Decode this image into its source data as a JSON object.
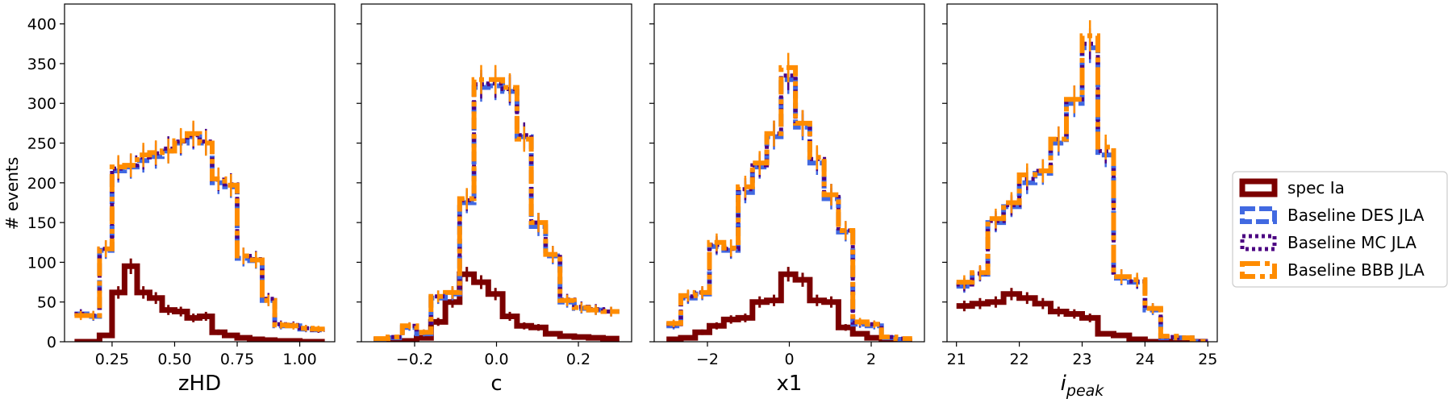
{
  "colors": {
    "spec": "#7b0000",
    "des": "#4169e1",
    "mc": "#4b0082",
    "bbb": "#ff8c00"
  },
  "ylabel": "# events",
  "legend": {
    "placement": "right",
    "entries": [
      "spec Ia",
      "Baseline DES JLA",
      "Baseline MC JLA",
      "Baseline BBB JLA"
    ]
  },
  "chart_data": [
    {
      "type": "histogram",
      "xlabel": "zHD",
      "xlim": [
        0.06,
        1.14
      ],
      "ylim": [
        0,
        425
      ],
      "xticks": [
        0.25,
        0.5,
        0.75,
        1.0
      ],
      "xtick_labels": [
        "0.25",
        "0.50",
        "0.75",
        "1.00"
      ],
      "yticks": [
        0,
        50,
        100,
        150,
        200,
        250,
        300,
        350,
        400
      ],
      "bin_edges": [
        0.1,
        0.15,
        0.2,
        0.25,
        0.3,
        0.35,
        0.4,
        0.45,
        0.5,
        0.55,
        0.6,
        0.65,
        0.7,
        0.75,
        0.8,
        0.85,
        0.9,
        0.95,
        1.0,
        1.05,
        1.1
      ],
      "series": [
        {
          "name": "spec Ia",
          "values": [
            0,
            0,
            8,
            62,
            95,
            62,
            55,
            40,
            38,
            30,
            32,
            12,
            8,
            5,
            3,
            2,
            1,
            1,
            0,
            0
          ]
        },
        {
          "name": "Baseline DES JLA",
          "values": [
            35,
            32,
            115,
            215,
            220,
            228,
            233,
            240,
            250,
            258,
            250,
            200,
            195,
            105,
            102,
            52,
            20,
            20,
            16,
            15
          ]
        },
        {
          "name": "Baseline MC JLA",
          "values": [
            35,
            33,
            117,
            218,
            222,
            232,
            237,
            243,
            252,
            260,
            252,
            204,
            198,
            108,
            104,
            54,
            22,
            21,
            17,
            15
          ]
        },
        {
          "name": "Baseline BBB JLA",
          "values": [
            33,
            33,
            117,
            220,
            222,
            235,
            238,
            240,
            253,
            262,
            250,
            205,
            197,
            108,
            103,
            52,
            21,
            20,
            17,
            16
          ]
        }
      ]
    },
    {
      "type": "histogram",
      "xlabel": "c",
      "xlim": [
        -0.33,
        0.33
      ],
      "ylim": [
        0,
        425
      ],
      "xticks": [
        -0.2,
        0.0,
        0.2
      ],
      "xtick_labels": [
        "−0.2",
        "0.0",
        "0.2"
      ],
      "yticks": [
        0,
        50,
        100,
        150,
        200,
        250,
        300,
        350,
        400
      ],
      "bin_edges": [
        -0.3,
        -0.265,
        -0.23,
        -0.195,
        -0.16,
        -0.125,
        -0.09,
        -0.055,
        -0.02,
        0.015,
        0.05,
        0.085,
        0.12,
        0.155,
        0.19,
        0.225,
        0.26,
        0.3
      ],
      "series": [
        {
          "name": "spec Ia",
          "values": [
            0,
            0,
            1,
            5,
            25,
            50,
            85,
            75,
            60,
            32,
            20,
            18,
            10,
            7,
            6,
            5,
            4
          ]
        },
        {
          "name": "Baseline DES JLA",
          "values": [
            3,
            5,
            18,
            10,
            55,
            60,
            175,
            320,
            322,
            315,
            258,
            145,
            108,
            50,
            42,
            40,
            38
          ]
        },
        {
          "name": "Baseline MC JLA",
          "values": [
            4,
            6,
            20,
            12,
            57,
            62,
            178,
            324,
            325,
            318,
            260,
            150,
            110,
            53,
            44,
            41,
            38
          ]
        },
        {
          "name": "Baseline BBB JLA",
          "values": [
            4,
            6,
            20,
            12,
            57,
            62,
            180,
            330,
            330,
            320,
            255,
            150,
            110,
            52,
            43,
            40,
            38
          ]
        }
      ]
    },
    {
      "type": "histogram",
      "xlabel": "x1",
      "xlim": [
        -3.3,
        3.3
      ],
      "ylim": [
        0,
        425
      ],
      "xticks": [
        -2,
        0,
        2
      ],
      "xtick_labels": [
        "−2",
        "0",
        "2"
      ],
      "yticks": [
        0,
        50,
        100,
        150,
        200,
        250,
        300,
        350,
        400
      ],
      "bin_edges": [
        -3.0,
        -2.65,
        -2.3,
        -1.95,
        -1.6,
        -1.25,
        -0.9,
        -0.55,
        -0.2,
        0.15,
        0.5,
        0.85,
        1.2,
        1.55,
        1.9,
        2.25,
        2.6,
        3.0
      ],
      "series": [
        {
          "name": "spec Ia",
          "values": [
            3,
            5,
            12,
            20,
            28,
            30,
            50,
            52,
            85,
            78,
            52,
            50,
            18,
            10,
            5,
            2,
            1
          ]
        },
        {
          "name": "Baseline DES JLA",
          "values": [
            20,
            55,
            60,
            120,
            115,
            188,
            220,
            258,
            330,
            270,
            225,
            180,
            138,
            22,
            20,
            5,
            3
          ]
        },
        {
          "name": "Baseline MC JLA",
          "values": [
            22,
            57,
            62,
            122,
            117,
            192,
            222,
            262,
            335,
            275,
            230,
            185,
            140,
            24,
            22,
            6,
            4
          ]
        },
        {
          "name": "Baseline BBB JLA",
          "values": [
            23,
            58,
            62,
            125,
            118,
            195,
            225,
            262,
            345,
            275,
            232,
            185,
            140,
            25,
            22,
            6,
            4
          ]
        }
      ]
    },
    {
      "type": "histogram",
      "xlabel": "i_peak",
      "xlabel_main": "i",
      "xlabel_sub": "peak",
      "xlim": [
        20.85,
        25.15
      ],
      "ylim": [
        0,
        425
      ],
      "xticks": [
        21,
        22,
        23,
        24,
        25
      ],
      "xtick_labels": [
        "21",
        "22",
        "23",
        "24",
        "25"
      ],
      "yticks": [
        0,
        50,
        100,
        150,
        200,
        250,
        300,
        350,
        400
      ],
      "bin_edges": [
        21.0,
        21.25,
        21.5,
        21.75,
        22.0,
        22.25,
        22.5,
        22.75,
        23.0,
        23.25,
        23.5,
        23.75,
        24.0,
        24.25,
        24.5,
        24.75,
        25.0
      ],
      "series": [
        {
          "name": "spec Ia",
          "values": [
            45,
            48,
            50,
            60,
            55,
            48,
            38,
            35,
            30,
            10,
            8,
            3,
            0,
            0,
            0,
            0
          ]
        },
        {
          "name": "Baseline DES JLA",
          "values": [
            70,
            85,
            150,
            170,
            200,
            212,
            250,
            300,
            370,
            235,
            80,
            75,
            40,
            5,
            5,
            0
          ]
        },
        {
          "name": "Baseline MC JLA",
          "values": [
            72,
            86,
            152,
            172,
            205,
            215,
            255,
            305,
            375,
            240,
            82,
            76,
            42,
            6,
            5,
            0
          ]
        },
        {
          "name": "Baseline BBB JLA",
          "values": [
            75,
            87,
            155,
            175,
            210,
            215,
            255,
            305,
            385,
            245,
            82,
            78,
            42,
            7,
            5,
            0
          ]
        }
      ]
    }
  ]
}
